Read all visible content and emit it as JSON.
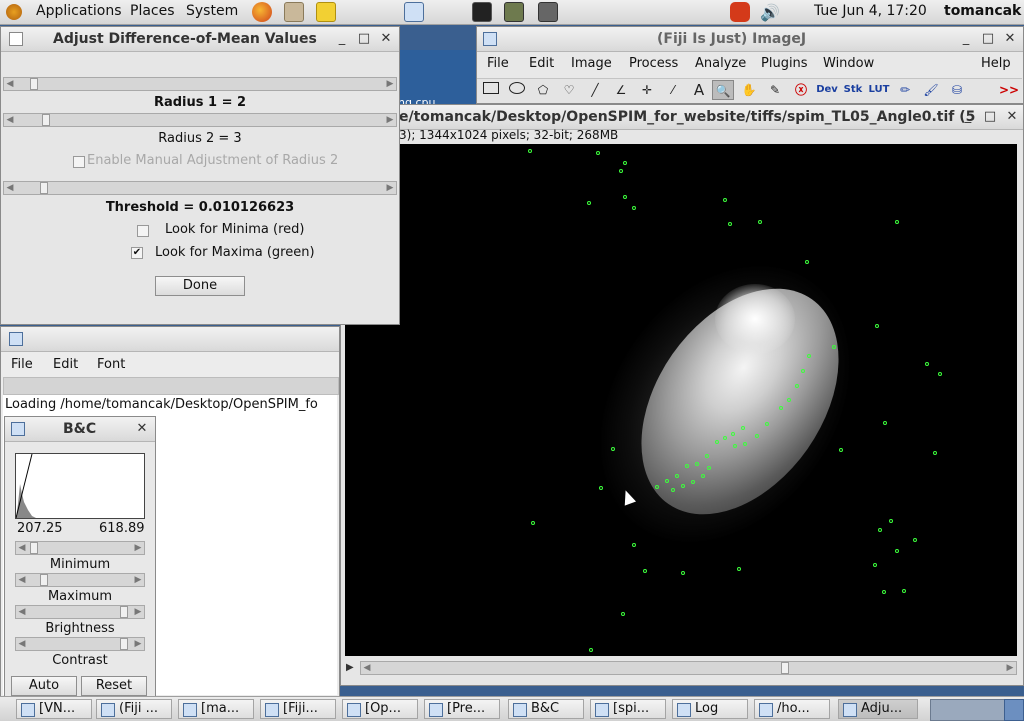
{
  "top_panel": {
    "menus": [
      "Applications",
      "Places",
      "System"
    ],
    "datetime": "Tue Jun  4, 17:20",
    "user": "tomancak"
  },
  "adjust_window": {
    "title": "Adjust Difference-of-Mean Values",
    "radius1_label": "Radius 1 = 2",
    "radius2_label": "Radius 2 = 3",
    "manual_radius2_label": "Enable Manual Adjustment of Radius 2",
    "threshold_label": "Threshold = 0.010126623",
    "minima_label": "Look for Minima (red)",
    "maxima_label": "Look for Maxima (green)",
    "done_label": "Done",
    "maxima_checked": "✔"
  },
  "log_window": {
    "menus": [
      "File",
      "Edit",
      "Font"
    ],
    "text": "Loading /home/tomancak/Desktop/OpenSPIM_fo"
  },
  "bc_window": {
    "title": "B&C",
    "min_value": "207.25",
    "max_value": "618.89",
    "labels": [
      "Minimum",
      "Maximum",
      "Brightness",
      "Contrast"
    ],
    "auto_label": "Auto",
    "reset_label": "Reset"
  },
  "imagej_window": {
    "title": "(Fiji Is Just) ImageJ",
    "menus": [
      "File",
      "Edit",
      "Image",
      "Process",
      "Analyze",
      "Plugins",
      "Window",
      "Help"
    ],
    "tools": [
      "rect-tool",
      "oval-tool",
      "polygon-tool",
      "freehand-tool",
      "line-tool",
      "angle-tool",
      "point-tool",
      "wand-tool",
      "text-tool",
      "zoom-tool",
      "hand-tool",
      "dropper-tool",
      "x-tool",
      "dev-tool",
      "stk-tool",
      "lut-tool",
      "pencil-tool",
      "brush-tool",
      "fill-tool"
    ],
    "tool_labels": {
      "text": "A",
      "dev": "Dev",
      "stk": "Stk",
      "lut": "LUT",
      "more": ">>"
    }
  },
  "image_window": {
    "title": "e/tomancak/Desktop/OpenSPIM_for_website/tiffs/spim_TL05_Angle0.tif (5",
    "info": "3); 1344x1024 pixels; 32-bit; 268MB",
    "desktop_fragment": "ng cpu"
  },
  "taskbar": {
    "items": [
      "[VN...",
      "(Fiji ...",
      "[ma...",
      "[Fiji...",
      "[Op...",
      "[Pre...",
      "B&C",
      "[spi...",
      "Log",
      "/ho...",
      "Adju..."
    ]
  }
}
